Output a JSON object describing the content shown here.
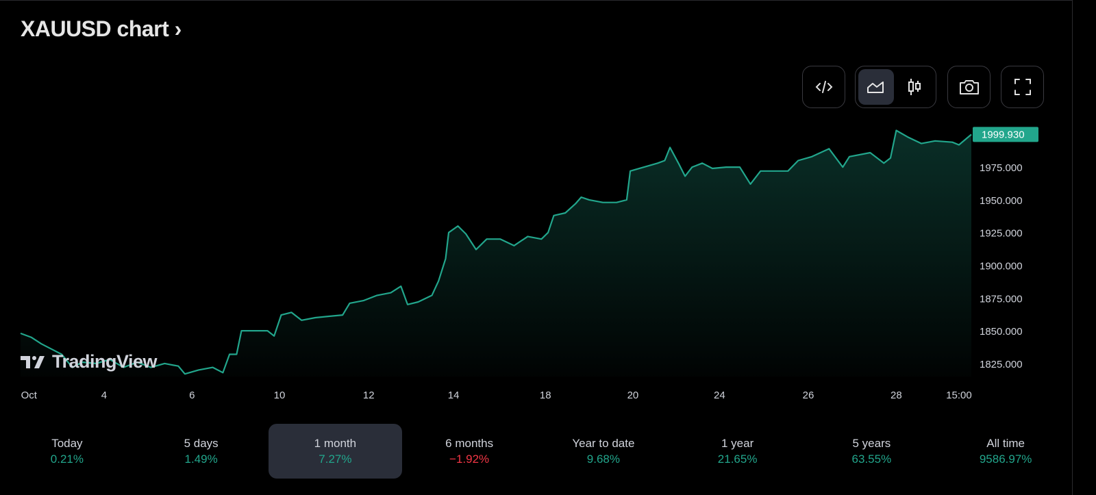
{
  "title": "XAUUSD chart ›",
  "toolbar": {
    "embed_icon": "code-icon",
    "area_icon": "area-chart-icon",
    "candles_icon": "candlestick-icon",
    "snapshot_icon": "camera-icon",
    "fullscreen_icon": "fullscreen-icon"
  },
  "watermark": "TradingView",
  "colors": {
    "up": "#22a68c",
    "down": "#f23645",
    "selected": "#2a2e39"
  },
  "periods": [
    {
      "label": "Today",
      "value": "0.21%",
      "dir": "up"
    },
    {
      "label": "5 days",
      "value": "1.49%",
      "dir": "up"
    },
    {
      "label": "1 month",
      "value": "7.27%",
      "dir": "up",
      "selected": true
    },
    {
      "label": "6 months",
      "value": "−1.92%",
      "dir": "down"
    },
    {
      "label": "Year to date",
      "value": "9.68%",
      "dir": "up"
    },
    {
      "label": "1 year",
      "value": "21.65%",
      "dir": "up"
    },
    {
      "label": "5 years",
      "value": "63.55%",
      "dir": "up"
    },
    {
      "label": "All time",
      "value": "9586.97%",
      "dir": "up"
    }
  ],
  "chart_data": {
    "type": "area",
    "title": "XAUUSD",
    "last_price": 1999.93,
    "last_price_label": "1999.930",
    "xlim": [
      -0.19,
      21.33
    ],
    "ylim": [
      1815,
      2008.5
    ],
    "yticks": [
      {
        "v": 1975,
        "label": "1975.000"
      },
      {
        "v": 1950,
        "label": "1950.000"
      },
      {
        "v": 1925,
        "label": "1925.000"
      },
      {
        "v": 1900,
        "label": "1900.000"
      },
      {
        "v": 1875,
        "label": "1875.000"
      },
      {
        "v": 1850,
        "label": "1850.000"
      },
      {
        "v": 1825,
        "label": "1825.000"
      }
    ],
    "xticks": [
      {
        "t": 0,
        "label": "Oct"
      },
      {
        "t": 1.7,
        "label": "4"
      },
      {
        "t": 3.69,
        "label": "6"
      },
      {
        "t": 5.67,
        "label": "10"
      },
      {
        "t": 7.69,
        "label": "12"
      },
      {
        "t": 9.61,
        "label": "14"
      },
      {
        "t": 11.69,
        "label": "18"
      },
      {
        "t": 13.67,
        "label": "20"
      },
      {
        "t": 15.63,
        "label": "24"
      },
      {
        "t": 17.64,
        "label": "26"
      },
      {
        "t": 19.63,
        "label": "28"
      },
      {
        "t": 21.05,
        "label": "15:00"
      }
    ],
    "points": [
      [
        -0.19,
        1848
      ],
      [
        0.05,
        1845
      ],
      [
        0.28,
        1840
      ],
      [
        0.51,
        1836
      ],
      [
        0.74,
        1832
      ],
      [
        0.98,
        1822
      ],
      [
        1.21,
        1826
      ],
      [
        1.52,
        1825
      ],
      [
        1.83,
        1828
      ],
      [
        2.14,
        1822
      ],
      [
        2.45,
        1826
      ],
      [
        2.76,
        1822
      ],
      [
        3.07,
        1825
      ],
      [
        3.38,
        1823
      ],
      [
        3.53,
        1817
      ],
      [
        3.84,
        1820
      ],
      [
        4.16,
        1822
      ],
      [
        4.39,
        1818
      ],
      [
        4.54,
        1832
      ],
      [
        4.7,
        1832
      ],
      [
        4.81,
        1850
      ],
      [
        5.09,
        1850
      ],
      [
        5.4,
        1850
      ],
      [
        5.55,
        1846
      ],
      [
        5.71,
        1862
      ],
      [
        5.94,
        1864
      ],
      [
        6.17,
        1858
      ],
      [
        6.48,
        1860
      ],
      [
        6.79,
        1861
      ],
      [
        7.1,
        1862
      ],
      [
        7.26,
        1871
      ],
      [
        7.57,
        1873
      ],
      [
        7.88,
        1877
      ],
      [
        8.19,
        1879
      ],
      [
        8.42,
        1884
      ],
      [
        8.57,
        1870
      ],
      [
        8.81,
        1872
      ],
      [
        9.12,
        1877
      ],
      [
        9.27,
        1888
      ],
      [
        9.43,
        1905
      ],
      [
        9.5,
        1925
      ],
      [
        9.71,
        1930
      ],
      [
        9.89,
        1924
      ],
      [
        10.12,
        1912
      ],
      [
        10.36,
        1920
      ],
      [
        10.67,
        1920
      ],
      [
        10.98,
        1915
      ],
      [
        11.29,
        1922
      ],
      [
        11.6,
        1920
      ],
      [
        11.75,
        1925
      ],
      [
        11.88,
        1938
      ],
      [
        12.14,
        1940
      ],
      [
        12.37,
        1947
      ],
      [
        12.5,
        1952
      ],
      [
        12.68,
        1950
      ],
      [
        12.99,
        1948
      ],
      [
        13.3,
        1948
      ],
      [
        13.53,
        1950
      ],
      [
        13.61,
        1972
      ],
      [
        13.92,
        1975
      ],
      [
        14.23,
        1978
      ],
      [
        14.39,
        1980
      ],
      [
        14.51,
        1990
      ],
      [
        14.7,
        1978
      ],
      [
        14.85,
        1968
      ],
      [
        15.01,
        1975
      ],
      [
        15.24,
        1978
      ],
      [
        15.47,
        1974
      ],
      [
        15.78,
        1975
      ],
      [
        16.09,
        1975
      ],
      [
        16.33,
        1962
      ],
      [
        16.56,
        1972
      ],
      [
        16.87,
        1972
      ],
      [
        17.18,
        1972
      ],
      [
        17.41,
        1980
      ],
      [
        17.72,
        1983
      ],
      [
        18.11,
        1989
      ],
      [
        18.42,
        1975
      ],
      [
        18.57,
        1983
      ],
      [
        19.04,
        1986
      ],
      [
        19.35,
        1978
      ],
      [
        19.5,
        1982
      ],
      [
        19.63,
        2003
      ],
      [
        19.89,
        1998
      ],
      [
        20.2,
        1993
      ],
      [
        20.51,
        1995
      ],
      [
        20.9,
        1994
      ],
      [
        21.05,
        1992
      ],
      [
        21.33,
        1999.93
      ]
    ]
  }
}
